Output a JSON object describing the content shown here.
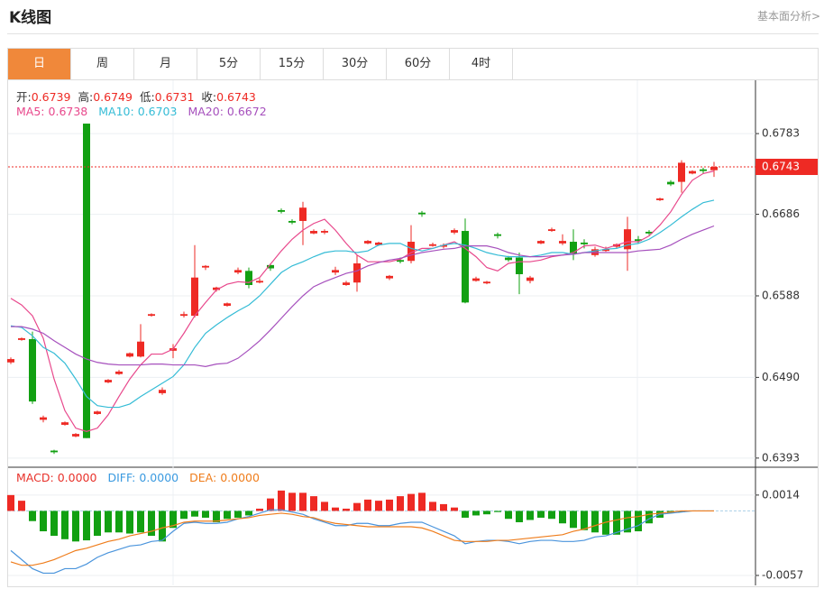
{
  "header": {
    "title": "K线图",
    "link": "基本面分析>"
  },
  "tabs": [
    "日",
    "周",
    "月",
    "5分",
    "15分",
    "30分",
    "60分",
    "4时"
  ],
  "active_tab": 0,
  "chart_data": [
    {
      "type": "candlestick",
      "ohlc_info": [
        {
          "label": "开:",
          "value": "0.6739"
        },
        {
          "label": "高:",
          "value": "0.6749"
        },
        {
          "label": "低:",
          "value": "0.6731"
        },
        {
          "label": "收:",
          "value": "0.6743"
        }
      ],
      "ma_info": [
        {
          "label": "MA5:",
          "value": "0.6738"
        },
        {
          "label": "MA10:",
          "value": "0.6703"
        },
        {
          "label": "MA20:",
          "value": "0.6672"
        }
      ],
      "up_color": "#ee2a24",
      "down_color": "#12a012",
      "open": [
        0.6508,
        0.6535,
        0.6536,
        0.6439,
        0.6402,
        0.6433,
        0.6419,
        0.6795,
        0.6446,
        0.6484,
        0.6494,
        0.6515,
        0.6515,
        0.6564,
        0.6471,
        0.6522,
        0.6564,
        0.6564,
        0.6622,
        0.6595,
        0.6576,
        0.6616,
        0.6618,
        0.6604,
        0.6625,
        0.6691,
        0.6678,
        0.6678,
        0.6663,
        0.6664,
        0.6616,
        0.6601,
        0.6604,
        0.6651,
        0.6649,
        0.6609,
        0.6631,
        0.663,
        0.6688,
        0.6648,
        0.6647,
        0.6664,
        0.6666,
        0.6606,
        0.6603,
        0.6662,
        0.6634,
        0.6634,
        0.6606,
        0.6651,
        0.6666,
        0.6651,
        0.6653,
        0.6652,
        0.6637,
        0.6642,
        0.6647,
        0.6644,
        0.6656,
        0.6665,
        0.6703,
        0.6725,
        0.6725,
        0.6735,
        0.674,
        0.6739
      ],
      "high": [
        0.6514,
        0.6538,
        0.6545,
        0.6444,
        0.6403,
        0.6437,
        0.6423,
        0.6795,
        0.645,
        0.6488,
        0.6499,
        0.652,
        0.6554,
        0.6567,
        0.6478,
        0.653,
        0.6569,
        0.6649,
        0.6625,
        0.6599,
        0.658,
        0.6622,
        0.6622,
        0.6609,
        0.6627,
        0.6693,
        0.668,
        0.6701,
        0.6668,
        0.6668,
        0.6623,
        0.6606,
        0.6637,
        0.6655,
        0.6653,
        0.6613,
        0.6634,
        0.6673,
        0.669,
        0.6652,
        0.6651,
        0.6669,
        0.6681,
        0.6611,
        0.6606,
        0.6664,
        0.6636,
        0.664,
        0.6612,
        0.6655,
        0.667,
        0.6662,
        0.6668,
        0.6656,
        0.6647,
        0.6647,
        0.6651,
        0.6683,
        0.666,
        0.6667,
        0.6706,
        0.6727,
        0.6751,
        0.6739,
        0.6742,
        0.6749
      ],
      "low": [
        0.6506,
        0.6534,
        0.6458,
        0.6436,
        0.6398,
        0.6432,
        0.6418,
        0.6417,
        0.6445,
        0.6483,
        0.6493,
        0.6514,
        0.6514,
        0.6563,
        0.6469,
        0.6513,
        0.6562,
        0.6562,
        0.6619,
        0.6593,
        0.6575,
        0.6614,
        0.6597,
        0.6603,
        0.6618,
        0.6687,
        0.6674,
        0.6649,
        0.6662,
        0.6662,
        0.6613,
        0.66,
        0.6593,
        0.665,
        0.6648,
        0.6607,
        0.6627,
        0.6627,
        0.6683,
        0.6647,
        0.6645,
        0.6662,
        0.6579,
        0.6605,
        0.6602,
        0.6657,
        0.6629,
        0.659,
        0.6603,
        0.665,
        0.6665,
        0.6649,
        0.6631,
        0.6645,
        0.6635,
        0.6641,
        0.6645,
        0.6618,
        0.6651,
        0.6661,
        0.6702,
        0.672,
        0.6712,
        0.6734,
        0.6735,
        0.6731
      ],
      "close": [
        0.6512,
        0.6537,
        0.6461,
        0.6442,
        0.64,
        0.6436,
        0.6422,
        0.6417,
        0.6449,
        0.6487,
        0.6497,
        0.6519,
        0.6533,
        0.6566,
        0.6475,
        0.6525,
        0.6566,
        0.661,
        0.6624,
        0.6598,
        0.6579,
        0.6619,
        0.6601,
        0.6606,
        0.6621,
        0.6689,
        0.6676,
        0.6694,
        0.6666,
        0.6666,
        0.6619,
        0.6604,
        0.6627,
        0.6654,
        0.6652,
        0.6612,
        0.6629,
        0.6653,
        0.6686,
        0.665,
        0.6649,
        0.6667,
        0.658,
        0.6609,
        0.6605,
        0.666,
        0.6631,
        0.6614,
        0.661,
        0.6654,
        0.6668,
        0.6654,
        0.6638,
        0.665,
        0.6644,
        0.6644,
        0.665,
        0.6668,
        0.6654,
        0.6663,
        0.6705,
        0.6722,
        0.6748,
        0.6738,
        0.6738,
        0.6743
      ],
      "series": [
        {
          "name": "MA5",
          "color": "#e8488c",
          "values": [
            0.6585,
            0.6577,
            0.6564,
            0.6537,
            0.6488,
            0.645,
            0.6429,
            0.6425,
            0.6429,
            0.6445,
            0.6467,
            0.6488,
            0.6505,
            0.6518,
            0.6518,
            0.6524,
            0.6543,
            0.6564,
            0.658,
            0.6595,
            0.6602,
            0.6605,
            0.6604,
            0.661,
            0.6626,
            0.6642,
            0.6656,
            0.6667,
            0.6675,
            0.668,
            0.6667,
            0.6651,
            0.6637,
            0.6629,
            0.6629,
            0.6629,
            0.6632,
            0.664,
            0.6645,
            0.6645,
            0.6649,
            0.6653,
            0.6645,
            0.6635,
            0.6622,
            0.6618,
            0.6627,
            0.6629,
            0.6629,
            0.6631,
            0.6635,
            0.6637,
            0.664,
            0.6648,
            0.6649,
            0.6645,
            0.6649,
            0.6653,
            0.6653,
            0.666,
            0.6673,
            0.6689,
            0.671,
            0.6727,
            0.6735,
            0.6738
          ]
        },
        {
          "name": "MA10",
          "color": "#35bcd6",
          "values": [
            0.6552,
            0.655,
            0.654,
            0.6526,
            0.6519,
            0.6507,
            0.6488,
            0.6467,
            0.6456,
            0.6454,
            0.6454,
            0.6458,
            0.6467,
            0.6475,
            0.6483,
            0.6491,
            0.6505,
            0.6526,
            0.6543,
            0.6553,
            0.6562,
            0.657,
            0.6577,
            0.6588,
            0.6602,
            0.6616,
            0.6624,
            0.6629,
            0.6635,
            0.664,
            0.6642,
            0.6642,
            0.664,
            0.6642,
            0.6649,
            0.6651,
            0.6651,
            0.6645,
            0.6642,
            0.6645,
            0.6649,
            0.6651,
            0.6649,
            0.6645,
            0.664,
            0.6637,
            0.6635,
            0.6635,
            0.6635,
            0.6637,
            0.664,
            0.664,
            0.6638,
            0.664,
            0.6642,
            0.6644,
            0.6645,
            0.6649,
            0.6651,
            0.6656,
            0.6664,
            0.6673,
            0.6683,
            0.6692,
            0.67,
            0.6703
          ]
        },
        {
          "name": "MA20",
          "color": "#a650bd",
          "values": [
            0.6551,
            0.6551,
            0.6548,
            0.6543,
            0.6534,
            0.6526,
            0.6518,
            0.6512,
            0.6508,
            0.6506,
            0.6505,
            0.6505,
            0.6505,
            0.6506,
            0.6506,
            0.6505,
            0.6505,
            0.6505,
            0.6503,
            0.6506,
            0.6507,
            0.6513,
            0.6523,
            0.6534,
            0.6547,
            0.6561,
            0.6575,
            0.6588,
            0.6599,
            0.6605,
            0.661,
            0.6615,
            0.6618,
            0.6624,
            0.6628,
            0.6631,
            0.6633,
            0.6637,
            0.664,
            0.6642,
            0.6644,
            0.6645,
            0.6648,
            0.6648,
            0.6648,
            0.6645,
            0.664,
            0.6637,
            0.6635,
            0.6635,
            0.6636,
            0.6637,
            0.6638,
            0.664,
            0.664,
            0.664,
            0.664,
            0.664,
            0.6642,
            0.6643,
            0.6644,
            0.6649,
            0.6656,
            0.6662,
            0.6667,
            0.6672
          ]
        }
      ],
      "ylim": [
        0.6382,
        0.6846
      ],
      "yticks": [
        0.6783,
        0.6686,
        0.6588,
        {
          "value": 0.649,
          "label": "0.6490"
        },
        0.6393
      ],
      "grid": true,
      "last_price": 0.6743
    },
    {
      "type": "macd",
      "info": [
        {
          "label": "MACD:",
          "value": "0.0000",
          "color": "#e8312a"
        },
        {
          "label": "DIFF:",
          "value": "0.0000",
          "color": "#3a9ae0"
        },
        {
          "label": "DEA:",
          "value": "0.0000",
          "color": "#ef7d1c"
        }
      ],
      "histogram": {
        "up_color": "#ee2a24",
        "down_color": "#12a012",
        "values": [
          0.0014,
          0.0009,
          -0.0009,
          -0.0018,
          -0.0022,
          -0.0025,
          -0.0027,
          -0.0026,
          -0.0022,
          -0.0019,
          -0.0019,
          -0.002,
          -0.0019,
          -0.0022,
          -0.0027,
          -0.0015,
          -0.0007,
          -0.0005,
          -0.0006,
          -0.001,
          -0.0007,
          -0.0006,
          -0.0004,
          0.0002,
          0.0011,
          0.0018,
          0.0016,
          0.0016,
          0.0013,
          0.0008,
          0.0003,
          0.0002,
          0.0007,
          0.001,
          0.0009,
          0.001,
          0.0013,
          0.0015,
          0.0016,
          0.0008,
          0.0006,
          0.0003,
          -0.0006,
          -0.0004,
          -0.0003,
          -0.0001,
          -0.0007,
          -0.001,
          -0.0008,
          -0.0006,
          -0.0007,
          -0.0011,
          -0.0015,
          -0.0017,
          -0.0019,
          -0.0021,
          -0.0021,
          -0.0019,
          -0.0018,
          -0.0011,
          -0.0006,
          -0.0002,
          -0.0001,
          0,
          0,
          0
        ]
      },
      "series": [
        {
          "name": "DIFF",
          "color": "#4a94dc",
          "values": [
            -0.0035,
            -0.0043,
            -0.0051,
            -0.0055,
            -0.0055,
            -0.0051,
            -0.0051,
            -0.0047,
            -0.0041,
            -0.0037,
            -0.0034,
            -0.0031,
            -0.003,
            -0.0027,
            -0.0026,
            -0.0018,
            -0.0011,
            -0.001,
            -0.0011,
            -0.0011,
            -0.001,
            -0.0007,
            -0.0005,
            -0.0002,
            0.0001,
            0.0001,
            -0.0001,
            -0.0003,
            -0.0007,
            -0.001,
            -0.0013,
            -0.0013,
            -0.0011,
            -0.0011,
            -0.0013,
            -0.0013,
            -0.0011,
            -0.001,
            -0.001,
            -0.0014,
            -0.0018,
            -0.0022,
            -0.0029,
            -0.0027,
            -0.0026,
            -0.0026,
            -0.0027,
            -0.0029,
            -0.0027,
            -0.0026,
            -0.0026,
            -0.0027,
            -0.0027,
            -0.0026,
            -0.0023,
            -0.0022,
            -0.0019,
            -0.0016,
            -0.0013,
            -0.0007,
            -0.0003,
            -0.0002,
            -0.0001,
            0,
            0,
            0
          ]
        },
        {
          "name": "DEA",
          "color": "#ef7d1c",
          "values": [
            -0.0045,
            -0.0048,
            -0.0048,
            -0.0046,
            -0.0043,
            -0.0039,
            -0.0035,
            -0.0033,
            -0.003,
            -0.0027,
            -0.0025,
            -0.0022,
            -0.002,
            -0.0018,
            -0.0015,
            -0.0013,
            -0.001,
            -0.0009,
            -0.0009,
            -0.0009,
            -0.0008,
            -0.0007,
            -0.0006,
            -0.0004,
            -0.0003,
            -0.0002,
            -0.0003,
            -0.0005,
            -0.0006,
            -0.0009,
            -0.0011,
            -0.0012,
            -0.0013,
            -0.0014,
            -0.0014,
            -0.0014,
            -0.0014,
            -0.0014,
            -0.0015,
            -0.0018,
            -0.0022,
            -0.0026,
            -0.0027,
            -0.0027,
            -0.0027,
            -0.0026,
            -0.0026,
            -0.0025,
            -0.0024,
            -0.0023,
            -0.0022,
            -0.0021,
            -0.0018,
            -0.0016,
            -0.0013,
            -0.001,
            -0.0008,
            -0.0006,
            -0.0005,
            -0.0003,
            -0.0002,
            -0.0001,
            0,
            0,
            0,
            0
          ]
        }
      ],
      "ylim": [
        -0.0065,
        0.0037
      ],
      "yticks": [
        0.0014,
        -0.0057
      ],
      "grid": true
    }
  ]
}
